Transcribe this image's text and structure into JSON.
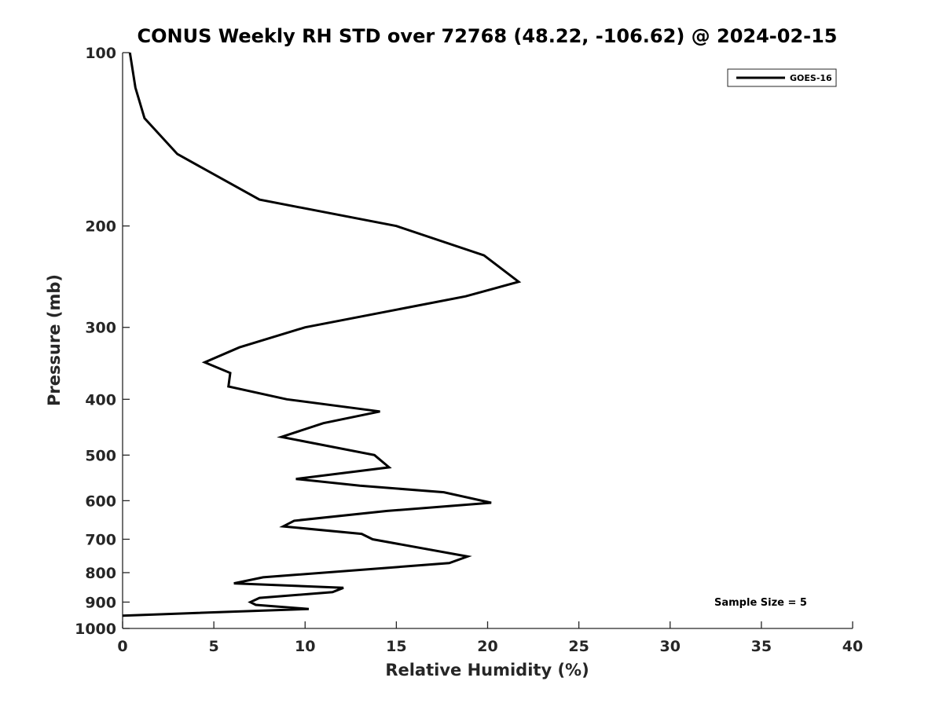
{
  "chart_data": {
    "type": "line",
    "title": "CONUS Weekly RH STD over 72768 (48.22, -106.62) @ 2024-02-15",
    "xlabel": "Relative Humidity (%)",
    "ylabel": "Pressure (mb)",
    "xlim": [
      0,
      40
    ],
    "ylim": [
      100,
      1000
    ],
    "y_scale": "log",
    "y_reversed": true,
    "grid": false,
    "legend_position": "top-right",
    "x_ticks": [
      "0",
      "5",
      "10",
      "15",
      "20",
      "25",
      "30",
      "35",
      "40"
    ],
    "y_ticks": [
      "100",
      "200",
      "300",
      "400",
      "500",
      "600",
      "700",
      "800",
      "900",
      "1000"
    ],
    "series": [
      {
        "name": "GOES-16",
        "color": "#000000",
        "points": [
          [
            0.4,
            100
          ],
          [
            0.7,
            115
          ],
          [
            1.2,
            130
          ],
          [
            3.0,
            150
          ],
          [
            7.5,
            180
          ],
          [
            15.0,
            200
          ],
          [
            19.8,
            225
          ],
          [
            21.7,
            250
          ],
          [
            18.8,
            265
          ],
          [
            10.0,
            300
          ],
          [
            6.4,
            325
          ],
          [
            4.5,
            345
          ],
          [
            5.9,
            360
          ],
          [
            5.8,
            380
          ],
          [
            9.0,
            400
          ],
          [
            14.1,
            420
          ],
          [
            11.0,
            440
          ],
          [
            8.7,
            465
          ],
          [
            13.8,
            500
          ],
          [
            14.6,
            525
          ],
          [
            9.5,
            550
          ],
          [
            13.0,
            565
          ],
          [
            17.6,
            580
          ],
          [
            20.2,
            605
          ],
          [
            14.5,
            625
          ],
          [
            9.4,
            650
          ],
          [
            8.8,
            665
          ],
          [
            13.1,
            685
          ],
          [
            13.7,
            700
          ],
          [
            18.9,
            750
          ],
          [
            17.9,
            770
          ],
          [
            7.7,
            815
          ],
          [
            6.1,
            835
          ],
          [
            12.1,
            850
          ],
          [
            11.5,
            865
          ],
          [
            7.5,
            885
          ],
          [
            7.0,
            900
          ],
          [
            7.3,
            910
          ],
          [
            10.2,
            925
          ],
          [
            0.0,
            950
          ]
        ]
      }
    ],
    "annotations": [
      "Sample Size = 5"
    ]
  }
}
